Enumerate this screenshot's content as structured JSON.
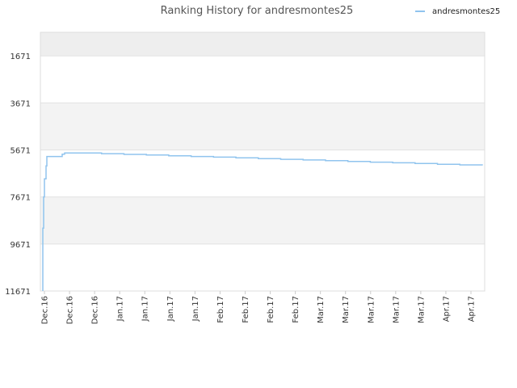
{
  "chart_data": {
    "type": "line",
    "title": "Ranking History for andresmontes25",
    "xlabel": "",
    "ylabel": "",
    "y_inverted": true,
    "ylim": [
      11671,
      671
    ],
    "y_ticks": [
      1671,
      3671,
      5671,
      7671,
      9671,
      11671
    ],
    "y_tick_labels": [
      "1671",
      "3671",
      "5671",
      "7671",
      "9671",
      "11671"
    ],
    "x_tick_labels": [
      "Dec.16",
      "Dec.16",
      "Dec.16",
      "Jan.17",
      "Jan.17",
      "Jan.17",
      "Jan.17",
      "Feb.17",
      "Feb.17",
      "Feb.17",
      "Feb.17",
      "Mar.17",
      "Mar.17",
      "Mar.17",
      "Mar.17",
      "Mar.17",
      "Apr.17",
      "Apr.17"
    ],
    "grid": true,
    "legend": "top-right",
    "series": [
      {
        "name": "andresmontes25",
        "color": "#90c4ee",
        "values": [
          11671,
          9000,
          7671,
          6900,
          6800,
          6350,
          5950,
          5950,
          5950,
          5850,
          5800,
          5800,
          5830,
          5860,
          5890,
          5920,
          5950,
          5980,
          6010,
          6040,
          6070,
          6100,
          6130,
          6160,
          6190,
          6220,
          6250,
          6280,
          6310,
          6330
        ]
      }
    ]
  }
}
